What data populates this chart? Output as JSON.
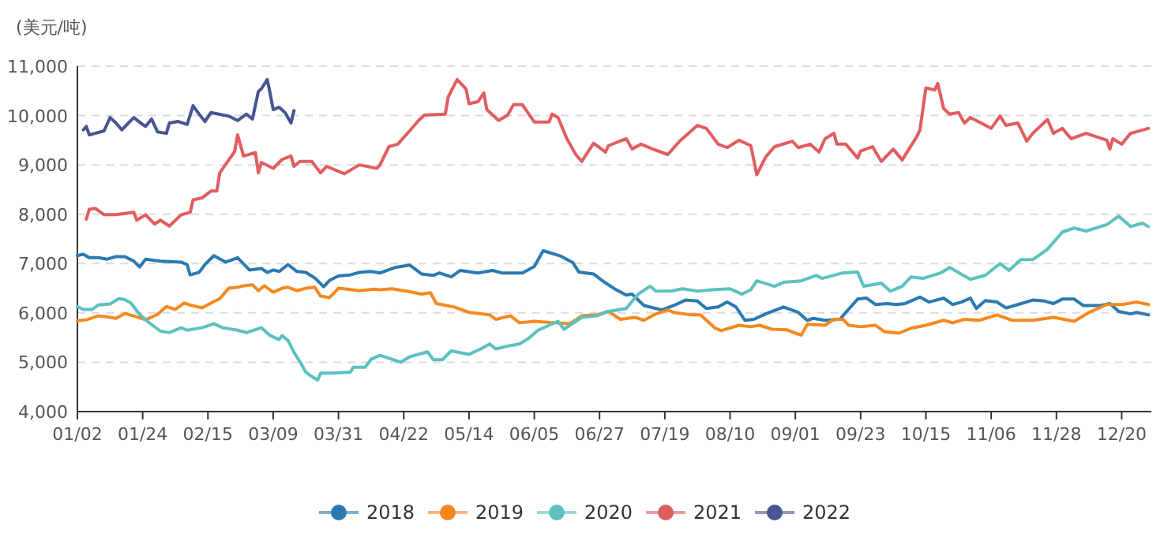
{
  "chart_data": {
    "type": "line",
    "ylabel": "(美元/吨)",
    "xlim": [
      "--01-02",
      "--12-30"
    ],
    "xticks": [
      {
        "value": "--01-02",
        "label": "01/02"
      },
      {
        "value": "--01-24",
        "label": "01/24"
      },
      {
        "value": "--02-15",
        "label": "02/15"
      },
      {
        "value": "--03-09",
        "label": "03/09"
      },
      {
        "value": "--03-31",
        "label": "03/31"
      },
      {
        "value": "--04-22",
        "label": "04/22"
      },
      {
        "value": "--05-14",
        "label": "05/14"
      },
      {
        "value": "--06-05",
        "label": "06/05"
      },
      {
        "value": "--06-27",
        "label": "06/27"
      },
      {
        "value": "--07-19",
        "label": "07/19"
      },
      {
        "value": "--08-10",
        "label": "08/10"
      },
      {
        "value": "--09-01",
        "label": "09/01"
      },
      {
        "value": "--09-23",
        "label": "09/23"
      },
      {
        "value": "--10-15",
        "label": "10/15"
      },
      {
        "value": "--11-06",
        "label": "11/06"
      },
      {
        "value": "--11-28",
        "label": "11/28"
      },
      {
        "value": "--12-20",
        "label": "12/20"
      }
    ],
    "ylim": [
      4000,
      11000
    ],
    "yticks": [
      {
        "value": 4000,
        "label": "4,000"
      },
      {
        "value": 5000,
        "label": "5,000"
      },
      {
        "value": 6000,
        "label": "6,000"
      },
      {
        "value": 7000,
        "label": "7,000"
      },
      {
        "value": 8000,
        "label": "8,000"
      },
      {
        "value": 9000,
        "label": "9,000"
      },
      {
        "value": 10000,
        "label": "10,000"
      },
      {
        "value": 11000,
        "label": "11,000"
      }
    ],
    "grid": "y",
    "legend": "bottom",
    "line_style": "solid",
    "series": [
      {
        "name": "2018",
        "color": "#2a7ab0",
        "x": [
          "--01-02",
          "--01-04",
          "--01-06",
          "--01-09",
          "--01-12",
          "--01-15",
          "--01-18",
          "--01-21",
          "--01-23",
          "--01-25",
          "--01-30",
          "--02-06",
          "--02-08",
          "--02-09",
          "--02-12",
          "--02-14",
          "--02-17",
          "--02-21",
          "--02-25",
          "--03-01",
          "--03-05",
          "--03-07",
          "--03-09",
          "--03-11",
          "--03-14",
          "--03-17",
          "--03-20",
          "--03-23",
          "--03-26",
          "--03-28",
          "--03-31",
          "--04-04",
          "--04-07",
          "--04-11",
          "--04-14",
          "--04-19",
          "--04-24",
          "--04-28",
          "--05-02",
          "--05-04",
          "--05-08",
          "--05-11",
          "--05-17",
          "--05-22",
          "--05-25",
          "--06-01",
          "--06-05",
          "--06-08",
          "--06-14",
          "--06-18",
          "--06-20",
          "--06-25",
          "--06-28",
          "--07-02",
          "--07-06",
          "--07-08",
          "--07-12",
          "--07-18",
          "--07-22",
          "--07-26",
          "--07-30",
          "--08-02",
          "--08-06",
          "--08-09",
          "--08-12",
          "--08-15",
          "--08-18",
          "--08-22",
          "--08-28",
          "--09-02",
          "--09-05",
          "--09-07",
          "--09-11",
          "--09-16",
          "--09-18",
          "--09-22",
          "--09-25",
          "--09-28",
          "--10-02",
          "--10-05",
          "--10-08",
          "--10-13",
          "--10-16",
          "--10-21",
          "--10-24",
          "--10-27",
          "--10-30",
          "--11-01",
          "--11-04",
          "--11-08",
          "--11-11",
          "--11-15",
          "--11-20",
          "--11-24",
          "--11-27",
          "--11-30",
          "--12-04",
          "--12-07",
          "--12-13",
          "--12-16",
          "--12-19",
          "--12-23",
          "--12-25",
          "--12-29"
        ],
        "values": [
          7160,
          7190,
          7120,
          7120,
          7090,
          7140,
          7140,
          7050,
          6930,
          7090,
          7050,
          7030,
          6980,
          6770,
          6820,
          6980,
          7160,
          7030,
          7120,
          6870,
          6900,
          6820,
          6870,
          6840,
          6980,
          6840,
          6820,
          6710,
          6530,
          6660,
          6750,
          6770,
          6820,
          6840,
          6810,
          6920,
          6970,
          6790,
          6760,
          6810,
          6730,
          6860,
          6810,
          6860,
          6810,
          6810,
          6940,
          7260,
          7150,
          7020,
          6830,
          6790,
          6650,
          6490,
          6360,
          6380,
          6150,
          6060,
          6150,
          6260,
          6240,
          6090,
          6120,
          6220,
          6120,
          5850,
          5870,
          5980,
          6120,
          6010,
          5850,
          5890,
          5850,
          5870,
          6010,
          6280,
          6300,
          6170,
          6190,
          6170,
          6190,
          6320,
          6220,
          6300,
          6170,
          6220,
          6300,
          6090,
          6250,
          6220,
          6100,
          6170,
          6260,
          6240,
          6190,
          6280,
          6280,
          6150,
          6150,
          6190,
          6030,
          5980,
          6010,
          5960
        ]
      },
      {
        "name": "2019",
        "color": "#f5891f",
        "x": [
          "--01-02",
          "--01-05",
          "--01-09",
          "--01-12",
          "--01-15",
          "--01-18",
          "--01-22",
          "--01-25",
          "--01-29",
          "--02-01",
          "--02-04",
          "--02-07",
          "--02-09",
          "--02-13",
          "--02-17",
          "--02-19",
          "--02-22",
          "--02-25",
          "--02-27",
          "--03-02",
          "--03-04",
          "--03-06",
          "--03-09",
          "--03-12",
          "--03-14",
          "--03-17",
          "--03-20",
          "--03-23",
          "--03-25",
          "--03-28",
          "--03-31",
          "--04-03",
          "--04-07",
          "--04-12",
          "--04-14",
          "--04-18",
          "--04-23",
          "--04-28",
          "--05-01",
          "--05-03",
          "--05-09",
          "--05-14",
          "--05-21",
          "--05-23",
          "--05-28",
          "--05-31",
          "--06-05",
          "--06-12",
          "--06-17",
          "--06-21",
          "--06-26",
          "--06-30",
          "--07-04",
          "--07-09",
          "--07-12",
          "--07-16",
          "--07-20",
          "--07-22",
          "--07-28",
          "--07-31",
          "--08-05",
          "--08-07",
          "--08-13",
          "--08-17",
          "--08-20",
          "--08-24",
          "--08-29",
          "--09-01",
          "--09-03",
          "--09-05",
          "--09-11",
          "--09-14",
          "--09-17",
          "--09-19",
          "--09-23",
          "--09-28",
          "--10-01",
          "--10-06",
          "--10-10",
          "--10-15",
          "--10-21",
          "--10-24",
          "--10-28",
          "--11-02",
          "--11-08",
          "--11-13",
          "--11-20",
          "--11-27",
          "--12-04",
          "--12-09",
          "--12-15",
          "--12-20",
          "--12-25",
          "--12-29"
        ],
        "values": [
          5840,
          5860,
          5940,
          5920,
          5890,
          5990,
          5920,
          5860,
          5970,
          6130,
          6070,
          6200,
          6160,
          6100,
          6230,
          6290,
          6500,
          6520,
          6550,
          6570,
          6450,
          6550,
          6420,
          6500,
          6520,
          6450,
          6500,
          6520,
          6340,
          6310,
          6500,
          6480,
          6450,
          6480,
          6470,
          6490,
          6440,
          6380,
          6410,
          6190,
          6120,
          6010,
          5960,
          5870,
          5940,
          5800,
          5830,
          5800,
          5780,
          5940,
          5960,
          6030,
          5870,
          5910,
          5850,
          5980,
          6060,
          6010,
          5960,
          5960,
          5690,
          5640,
          5750,
          5720,
          5750,
          5670,
          5660,
          5590,
          5550,
          5770,
          5750,
          5870,
          5870,
          5750,
          5720,
          5750,
          5620,
          5590,
          5690,
          5750,
          5850,
          5800,
          5870,
          5850,
          5960,
          5850,
          5850,
          5910,
          5830,
          6010,
          6170,
          6170,
          6220,
          6170
        ]
      },
      {
        "name": "2020",
        "color": "#5cc1bf",
        "x": [
          "--01-02",
          "--01-04",
          "--01-07",
          "--01-09",
          "--01-13",
          "--01-16",
          "--01-18",
          "--01-20",
          "--01-23",
          "--01-26",
          "--01-30",
          "--02-02",
          "--02-06",
          "--02-08",
          "--02-13",
          "--02-17",
          "--02-20",
          "--02-25",
          "--02-28",
          "--03-05",
          "--03-08",
          "--03-11",
          "--03-12",
          "--03-14",
          "--03-16",
          "--03-18",
          "--03-20",
          "--03-22",
          "--03-24",
          "--03-25",
          "--03-29",
          "--04-04",
          "--04-05",
          "--04-09",
          "--04-11",
          "--04-14",
          "--04-17",
          "--04-21",
          "--04-24",
          "--04-30",
          "--05-02",
          "--05-05",
          "--05-08",
          "--05-14",
          "--05-18",
          "--05-21",
          "--05-23",
          "--05-28",
          "--05-31",
          "--06-03",
          "--06-06",
          "--06-10",
          "--06-13",
          "--06-15",
          "--06-21",
          "--06-26",
          "--06-30",
          "--07-06",
          "--07-10",
          "--07-14",
          "--07-16",
          "--07-21",
          "--07-25",
          "--07-30",
          "--08-04",
          "--08-10",
          "--08-14",
          "--08-17",
          "--08-19",
          "--08-25",
          "--08-28",
          "--09-03",
          "--09-08",
          "--09-10",
          "--09-17",
          "--09-22",
          "--09-24",
          "--09-30",
          "--10-03",
          "--10-07",
          "--10-10",
          "--10-14",
          "--10-20",
          "--10-23",
          "--10-30",
          "--11-04",
          "--11-09",
          "--11-12",
          "--11-16",
          "--11-20",
          "--11-25",
          "--11-30",
          "--12-04",
          "--12-08",
          "--12-15",
          "--12-19",
          "--12-23",
          "--12-27",
          "--12-29"
        ],
        "values": [
          6130,
          6070,
          6070,
          6160,
          6180,
          6290,
          6270,
          6200,
          5970,
          5810,
          5630,
          5600,
          5700,
          5650,
          5700,
          5780,
          5700,
          5650,
          5600,
          5700,
          5540,
          5460,
          5540,
          5440,
          5200,
          5010,
          4800,
          4710,
          4640,
          4780,
          4780,
          4800,
          4900,
          4900,
          5060,
          5140,
          5080,
          5000,
          5110,
          5210,
          5050,
          5050,
          5230,
          5160,
          5270,
          5370,
          5270,
          5340,
          5370,
          5480,
          5640,
          5750,
          5830,
          5670,
          5910,
          5940,
          6030,
          6090,
          6380,
          6540,
          6440,
          6440,
          6490,
          6440,
          6470,
          6490,
          6380,
          6470,
          6650,
          6540,
          6620,
          6650,
          6760,
          6700,
          6810,
          6830,
          6540,
          6600,
          6440,
          6540,
          6730,
          6700,
          6810,
          6920,
          6680,
          6760,
          7000,
          6860,
          7080,
          7080,
          7290,
          7640,
          7720,
          7660,
          7790,
          7960,
          7750,
          7820,
          7750
        ]
      },
      {
        "name": "2021",
        "color": "#e05d5f",
        "x": [
          "--01-05",
          "--01-06",
          "--01-08",
          "--01-11",
          "--01-15",
          "--01-21",
          "--01-22",
          "--01-25",
          "--01-28",
          "--01-30",
          "--02-02",
          "--02-06",
          "--02-09",
          "--02-10",
          "--02-13",
          "--02-16",
          "--02-18",
          "--02-19",
          "--02-24",
          "--02-25",
          "--02-27",
          "--03-03",
          "--03-04",
          "--03-05",
          "--03-09",
          "--03-12",
          "--03-15",
          "--03-16",
          "--03-18",
          "--03-22",
          "--03-25",
          "--03-27",
          "--04-02",
          "--04-07",
          "--04-13",
          "--04-14",
          "--04-17",
          "--04-20",
          "--04-24",
          "--04-27",
          "--04-29",
          "--05-06",
          "--05-07",
          "--05-10",
          "--05-13",
          "--05-14",
          "--05-17",
          "--05-19",
          "--05-20",
          "--05-24",
          "--05-27",
          "--05-29",
          "--06-01",
          "--06-05",
          "--06-10",
          "--06-11",
          "--06-13",
          "--06-16",
          "--06-19",
          "--06-21",
          "--06-25",
          "--06-29",
          "--06-30",
          "--07-06",
          "--07-08",
          "--07-11",
          "--07-15",
          "--07-20",
          "--07-24",
          "--07-30",
          "--08-02",
          "--08-06",
          "--08-09",
          "--08-13",
          "--08-17",
          "--08-19",
          "--08-22",
          "--08-25",
          "--08-31",
          "--09-02",
          "--09-06",
          "--09-09",
          "--09-11",
          "--09-14",
          "--09-15",
          "--09-18",
          "--09-22",
          "--09-23",
          "--09-27",
          "--09-30",
          "--10-04",
          "--10-07",
          "--10-12",
          "--10-13",
          "--10-15",
          "--10-18",
          "--10-19",
          "--10-21",
          "--10-23",
          "--10-26",
          "--10-28",
          "--10-30",
          "--11-06",
          "--11-09",
          "--11-11",
          "--11-15",
          "--11-18",
          "--11-20",
          "--11-25",
          "--11-27",
          "--11-30",
          "--12-03",
          "--12-08",
          "--12-15",
          "--12-16",
          "--12-17",
          "--12-20",
          "--12-23",
          "--12-29"
        ],
        "values": [
          7900,
          8100,
          8120,
          7990,
          7990,
          8040,
          7880,
          7990,
          7800,
          7880,
          7760,
          7990,
          8040,
          8290,
          8330,
          8470,
          8470,
          8840,
          9270,
          9610,
          9180,
          9250,
          8840,
          9050,
          8930,
          9110,
          9180,
          8970,
          9070,
          9070,
          8840,
          8970,
          8820,
          9000,
          8930,
          9000,
          9370,
          9420,
          9690,
          9900,
          10010,
          10030,
          10380,
          10730,
          10540,
          10240,
          10280,
          10460,
          10120,
          9900,
          10010,
          10220,
          10220,
          9870,
          9870,
          10030,
          9960,
          9530,
          9210,
          9070,
          9440,
          9260,
          9390,
          9530,
          9320,
          9420,
          9320,
          9210,
          9480,
          9800,
          9740,
          9420,
          9350,
          9500,
          9390,
          8800,
          9160,
          9370,
          9480,
          9350,
          9420,
          9260,
          9530,
          9640,
          9420,
          9420,
          9140,
          9280,
          9370,
          9070,
          9320,
          9100,
          9580,
          9710,
          10560,
          10520,
          10650,
          10140,
          10030,
          10060,
          9850,
          9960,
          9740,
          9990,
          9800,
          9850,
          9480,
          9640,
          9920,
          9640,
          9740,
          9530,
          9640,
          9500,
          9320,
          9530,
          9420,
          9640,
          9740
        ]
      },
      {
        "name": "2022",
        "color": "#475591",
        "x": [
          "--01-04",
          "--01-05",
          "--01-06",
          "--01-08",
          "--01-11",
          "--01-13",
          "--01-15",
          "--01-17",
          "--01-21",
          "--01-24",
          "--01-25",
          "--01-27",
          "--01-29",
          "--02-01",
          "--02-02",
          "--02-05",
          "--02-08",
          "--02-10",
          "--02-12",
          "--02-14",
          "--02-16",
          "--02-22",
          "--02-25",
          "--02-28",
          "--03-02",
          "--03-04",
          "--03-05",
          "--03-07",
          "--03-08",
          "--03-09",
          "--03-11",
          "--03-13",
          "--03-15",
          "--03-16"
        ],
        "values": [
          9710,
          9780,
          9610,
          9640,
          9690,
          9960,
          9850,
          9710,
          9960,
          9820,
          9780,
          9930,
          9670,
          9640,
          9850,
          9880,
          9820,
          10200,
          10030,
          9880,
          10060,
          9990,
          9900,
          10030,
          9930,
          10490,
          10540,
          10730,
          10440,
          10120,
          10170,
          10060,
          9850,
          10100
        ]
      }
    ]
  }
}
